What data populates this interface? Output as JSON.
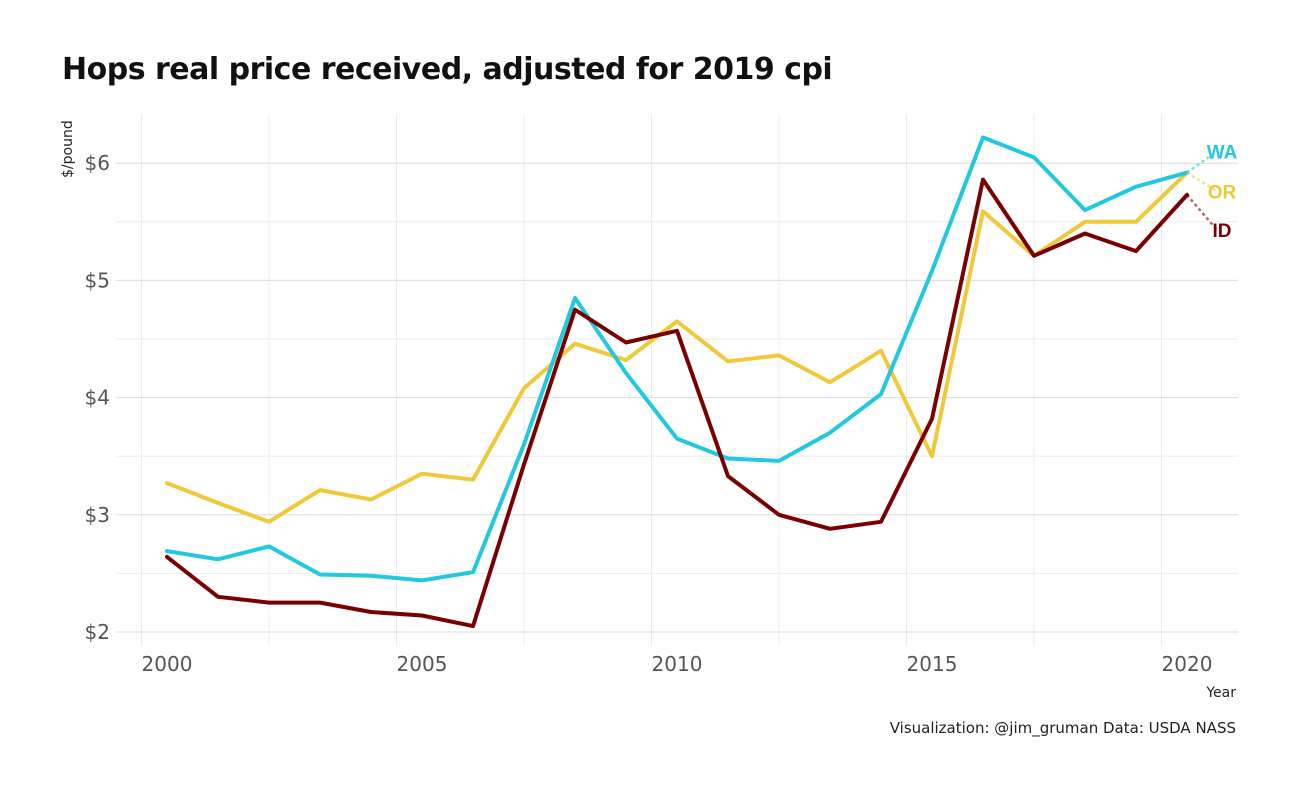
{
  "chart_data": {
    "type": "line",
    "title": "Hops real price received, adjusted for 2019 cpi",
    "xlabel": "Year",
    "ylabel": "$/pound",
    "caption": "Visualization: @jim_gruman Data: USDA NASS",
    "x": [
      2000,
      2001,
      2002,
      2003,
      2004,
      2005,
      2006,
      2007,
      2008,
      2009,
      2010,
      2011,
      2012,
      2013,
      2014,
      2015,
      2016,
      2017,
      2018,
      2019,
      2020
    ],
    "xlim": [
      1999,
      2021
    ],
    "ylim": [
      1.88,
      6.42
    ],
    "x_ticks": [
      2000,
      2005,
      2010,
      2015,
      2020
    ],
    "y_ticks": [
      2,
      3,
      4,
      5,
      6
    ],
    "y_tick_labels": [
      "$2",
      "$3",
      "$4",
      "$5",
      "$6"
    ],
    "grid": true,
    "legend": "end-of-line labels",
    "series": [
      {
        "name": "OR",
        "color": "#F0C93A",
        "values": [
          3.27,
          3.1,
          2.94,
          3.21,
          3.13,
          3.35,
          3.3,
          4.08,
          4.46,
          4.32,
          4.65,
          4.31,
          4.36,
          4.13,
          4.4,
          3.5,
          5.59,
          5.21,
          5.5,
          5.5,
          5.92
        ]
      },
      {
        "name": "WA",
        "color": "#22C8E0",
        "values": [
          2.69,
          2.62,
          2.73,
          2.49,
          2.48,
          2.44,
          2.51,
          3.6,
          4.85,
          4.21,
          3.65,
          3.48,
          3.46,
          3.7,
          4.03,
          5.08,
          6.22,
          6.05,
          5.6,
          5.8,
          5.92
        ]
      },
      {
        "name": "ID",
        "color": "#7A0000",
        "values": [
          2.64,
          2.3,
          2.25,
          2.25,
          2.17,
          2.14,
          2.05,
          3.43,
          4.75,
          4.47,
          4.57,
          3.33,
          3.0,
          2.88,
          2.94,
          3.82,
          5.86,
          5.21,
          5.4,
          5.25,
          5.73
        ]
      }
    ],
    "end_labels": [
      {
        "text": "WA",
        "color": "#22C8E0",
        "y": 6.1
      },
      {
        "text": "OR",
        "color": "#F0C93A",
        "y": 5.76
      },
      {
        "text": "ID",
        "color": "#7A0000",
        "y": 5.43
      }
    ]
  }
}
